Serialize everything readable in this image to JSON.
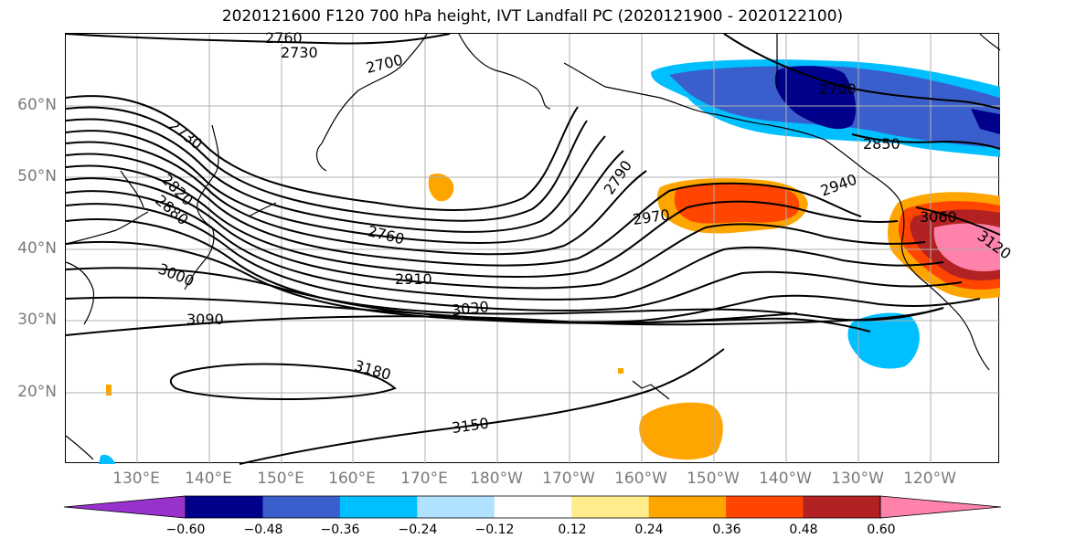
{
  "title": "2020121600 F120 700 hPa height, IVT Landfall PC (2020121900 - 2020122100)",
  "lat_labels": [
    "60°N",
    "50°N",
    "40°N",
    "30°N",
    "20°N"
  ],
  "lon_labels": [
    "130°E",
    "140°E",
    "150°E",
    "160°E",
    "170°E",
    "180°W",
    "170°W",
    "160°W",
    "150°W",
    "140°W",
    "130°W",
    "120°W"
  ],
  "contour_labels": [
    "2760",
    "2730",
    "2700",
    "2730",
    "2820",
    "2880",
    "3000",
    "3090",
    "2760",
    "2910",
    "3030",
    "3180",
    "3150",
    "2790",
    "2970",
    "2940",
    "2700",
    "2850",
    "3060",
    "3120"
  ],
  "colorbar": {
    "ticks": [
      "−0.60",
      "−0.48",
      "−0.36",
      "−0.24",
      "−0.12",
      "0.12",
      "0.24",
      "0.36",
      "0.48",
      "0.60"
    ],
    "colors": [
      "#9932cc",
      "#00008b",
      "#3a5fcd",
      "#00bfff",
      "#b0e2ff",
      "#ffffff",
      "#ffec8b",
      "#ffa500",
      "#ff4500",
      "#b22222",
      "#ff82ab"
    ]
  }
}
